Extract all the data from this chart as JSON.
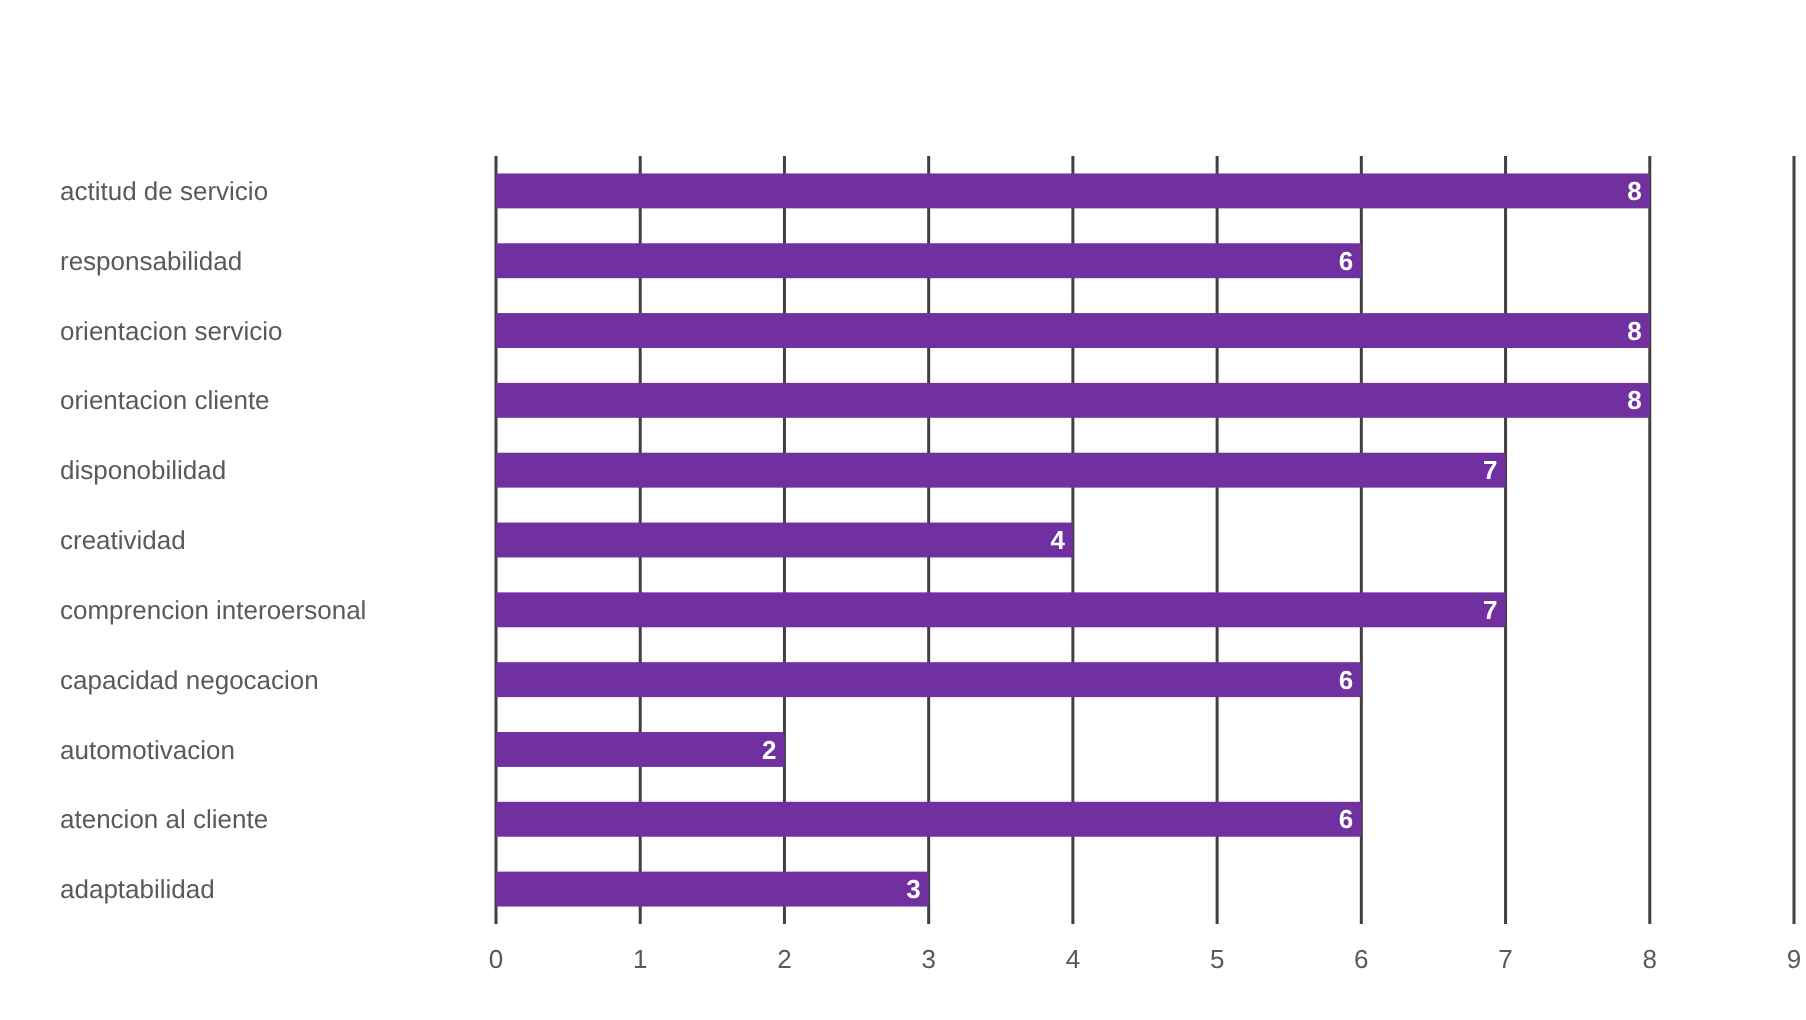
{
  "chart_data": {
    "type": "bar",
    "orientation": "horizontal",
    "categories": [
      "actitud de servicio",
      "responsabilidad",
      "orientacion servicio",
      "orientacion cliente",
      "disponobilidad",
      "creatividad",
      "comprencion interoersonal",
      "capacidad negocacion",
      "automotivacion",
      "atencion al cliente",
      "adaptabilidad"
    ],
    "values": [
      8,
      6,
      8,
      8,
      7,
      4,
      7,
      6,
      2,
      6,
      3
    ],
    "color": "#7030a0",
    "xlim": [
      0,
      9
    ],
    "xticks": [
      0,
      1,
      2,
      3,
      4,
      5,
      6,
      7,
      8,
      9
    ],
    "grid": "x",
    "data_labels": true
  }
}
